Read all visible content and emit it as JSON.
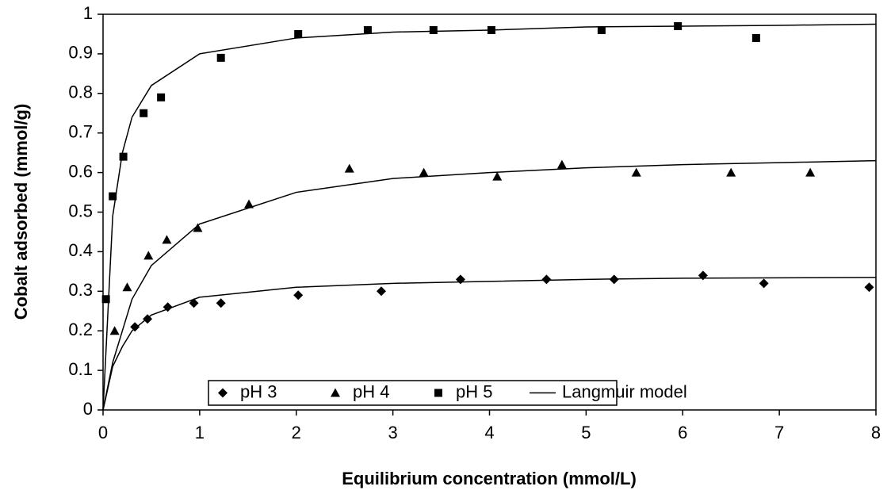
{
  "chart_data": {
    "type": "scatter",
    "xlabel": "Equilibrium concentration (mmol/L)",
    "ylabel": "Cobalt adsorbed (mmol/g)",
    "xlim": [
      0,
      8
    ],
    "xticks": [
      0,
      1,
      2,
      3,
      4,
      5,
      6,
      7,
      8
    ],
    "ylim": [
      0,
      1
    ],
    "yticks": [
      0,
      0.1,
      0.2,
      0.3,
      0.4,
      0.5,
      0.6,
      0.7,
      0.8,
      0.9,
      1
    ],
    "legend": "bottom",
    "series": [
      {
        "name": "pH 3",
        "marker": "diamond",
        "color": "#000000",
        "x": [
          0.33,
          0.46,
          0.67,
          0.94,
          1.22,
          2.02,
          2.88,
          3.7,
          4.59,
          5.29,
          6.21,
          6.84,
          7.93
        ],
        "values": [
          0.21,
          0.23,
          0.26,
          0.27,
          0.27,
          0.29,
          0.3,
          0.33,
          0.33,
          0.33,
          0.34,
          0.32,
          0.31
        ]
      },
      {
        "name": "pH 4",
        "marker": "triangle",
        "color": "#000000",
        "x": [
          0.12,
          0.25,
          0.47,
          0.66,
          0.98,
          1.51,
          2.55,
          3.32,
          4.08,
          4.75,
          5.52,
          6.5,
          7.32
        ],
        "values": [
          0.2,
          0.31,
          0.39,
          0.43,
          0.46,
          0.52,
          0.61,
          0.6,
          0.59,
          0.62,
          0.6,
          0.6,
          0.6
        ]
      },
      {
        "name": "pH 5",
        "marker": "square",
        "color": "#000000",
        "x": [
          0.03,
          0.1,
          0.21,
          0.42,
          0.6,
          1.22,
          2.02,
          2.74,
          3.42,
          4.02,
          5.16,
          5.95,
          6.76
        ],
        "values": [
          0.28,
          0.54,
          0.64,
          0.75,
          0.79,
          0.89,
          0.95,
          0.96,
          0.96,
          0.96,
          0.96,
          0.97,
          0.94
        ]
      }
    ],
    "model": {
      "name": "Langmuir model",
      "color": "#000000",
      "x": [
        0,
        0.1,
        0.2,
        0.3,
        0.5,
        1,
        2,
        3,
        4,
        5,
        6,
        7,
        8
      ],
      "curves": [
        [
          0,
          0.11,
          0.16,
          0.2,
          0.24,
          0.285,
          0.31,
          0.32,
          0.325,
          0.33,
          0.333,
          0.334,
          0.335
        ],
        [
          0,
          0.12,
          0.2,
          0.28,
          0.365,
          0.47,
          0.55,
          0.585,
          0.6,
          0.612,
          0.62,
          0.625,
          0.63
        ],
        [
          0,
          0.49,
          0.65,
          0.74,
          0.82,
          0.9,
          0.94,
          0.955,
          0.96,
          0.968,
          0.97,
          0.972,
          0.975
        ]
      ]
    }
  }
}
